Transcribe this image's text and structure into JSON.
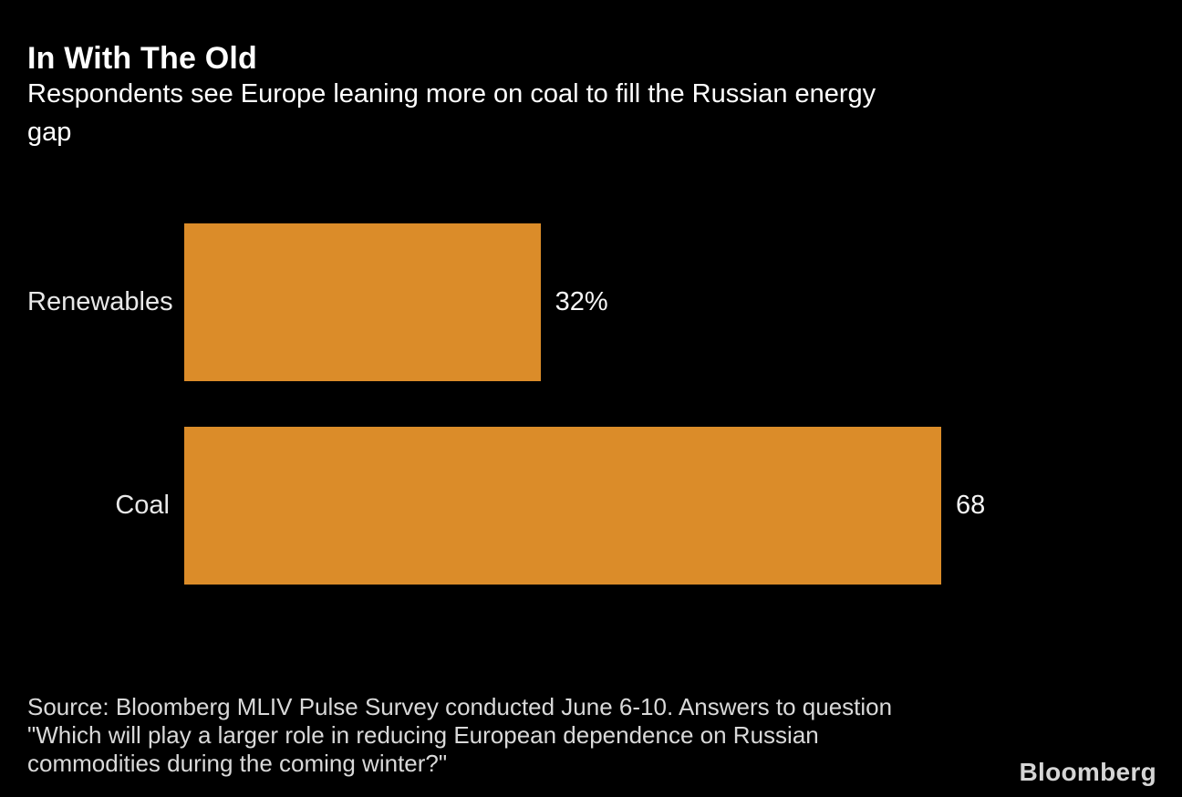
{
  "header": {
    "title": "In With The Old",
    "subtitle_lines": [
      "Respondents see Europe leaning more on coal to fill the Russian energy",
      "gap"
    ]
  },
  "chart_data": {
    "type": "bar",
    "orientation": "horizontal",
    "title": "In With The Old",
    "subtitle": "Respondents see Europe leaning more on coal to fill the Russian energy gap",
    "categories": [
      "Renewables",
      "Coal"
    ],
    "values": [
      32,
      68
    ],
    "value_labels": [
      "32%",
      "68"
    ],
    "xlabel": "",
    "ylabel": "",
    "xlim": [
      0,
      68
    ],
    "grid": false,
    "legend": "none",
    "bar_color": "#DB8C29",
    "background_color": "#000000",
    "label_color": "#E8E8E8",
    "value_color": "#F5F5F5"
  },
  "footer": {
    "source_lines": [
      "Source: Bloomberg MLIV Pulse Survey conducted June 6-10. Answers to question",
      "\"Which will play a larger role in reducing European dependence on Russian",
      "commodities during the coming winter?\""
    ],
    "brand": "Bloomberg"
  }
}
